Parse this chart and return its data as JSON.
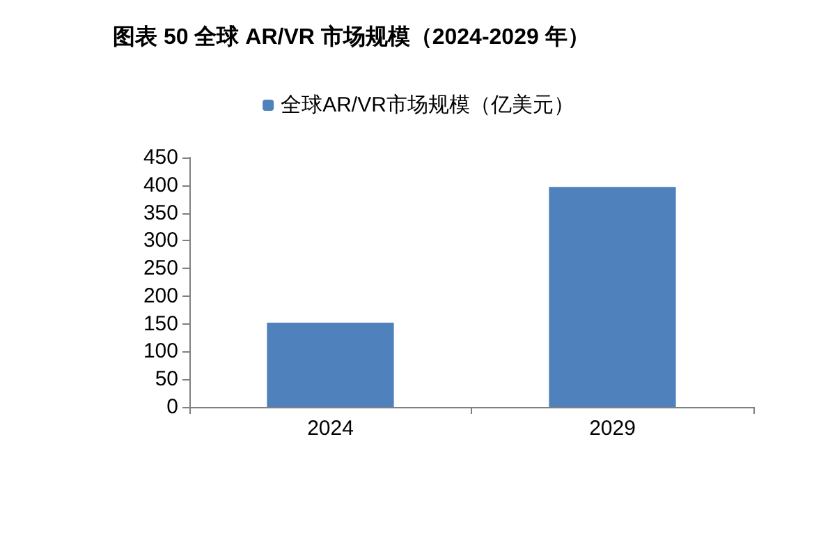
{
  "chart_data": {
    "type": "bar",
    "title": "图表 50 全球 AR/VR 市场规模（2024-2029 年）",
    "categories": [
      "2024",
      "2029"
    ],
    "series": [
      {
        "name": "全球AR/VR市场规模（亿美元）",
        "color": "#4f81bd",
        "values": [
          152,
          397
        ]
      }
    ],
    "ylim": [
      0,
      450
    ],
    "yticks": [
      0,
      50,
      100,
      150,
      200,
      250,
      300,
      350,
      400,
      450
    ],
    "grid": false,
    "legend": "top"
  }
}
